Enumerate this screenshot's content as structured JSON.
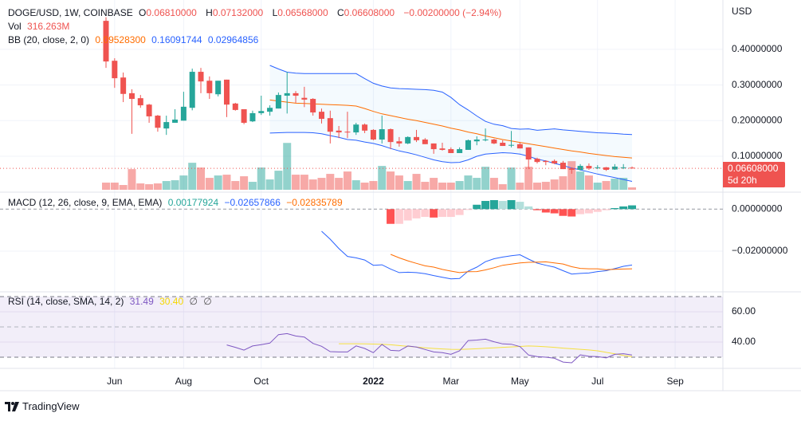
{
  "symbol_legend": {
    "title": "DOGE/USD, 1W, COINBASE",
    "o_label": "O",
    "o": "0.06810000",
    "h_label": "H",
    "h": "0.07132000",
    "l_label": "L",
    "l": "0.06568000",
    "c_label": "C",
    "c": "0.06608000",
    "change": "−0.00200000 (−2.94%)"
  },
  "volume_legend": {
    "label": "Vol",
    "value": "316.263M"
  },
  "bb_legend": {
    "label": "BB (20, close, 2, 0)",
    "basis": "0.09528300",
    "upper": "0.16091744",
    "lower": "0.02964856"
  },
  "macd_legend": {
    "label": "MACD (12, 26, close, 9, EMA, EMA)",
    "hist": "0.00177924",
    "macd": "−0.02657866",
    "signal": "−0.02835789"
  },
  "rsi_legend": {
    "label": "RSI (14, close, SMA, 14, 2)",
    "rsi": "31.49",
    "sma": "30.40",
    "extra1": "∅",
    "extra2": "∅"
  },
  "price_axis": {
    "currency": "USD",
    "ticks": [
      "0.40000000",
      "0.30000000",
      "0.20000000",
      "0.10000000"
    ],
    "last_price": "0.06608000",
    "countdown": "5d 20h"
  },
  "macd_axis": {
    "ticks": [
      "0.00000000",
      "−0.02000000"
    ]
  },
  "rsi_axis": {
    "ticks": [
      "60.00",
      "40.00"
    ]
  },
  "time_axis": {
    "ticks": [
      {
        "label": "Jun",
        "date": "2021-06-07"
      },
      {
        "label": "Aug",
        "date": "2021-08-02"
      },
      {
        "label": "Oct",
        "date": "2021-10-04"
      },
      {
        "label": "2022",
        "date": "2022-01-03"
      },
      {
        "label": "Mar",
        "date": "2022-03-07"
      },
      {
        "label": "May",
        "date": "2022-05-02"
      },
      {
        "label": "Jul",
        "date": "2022-07-04"
      },
      {
        "label": "Sep",
        "date": "2022-09-05"
      }
    ]
  },
  "footer": {
    "brand": "TradingView"
  },
  "colors": {
    "up": "#26a69a",
    "down": "#ef5350",
    "bb_basis": "#ff6d00",
    "bb_band": "#2962ff",
    "macd": "#2962ff",
    "signal": "#ff6d00",
    "rsi": "#7e57c2",
    "rsi_sma": "#f5e040"
  },
  "chart_data": {
    "type": "candlestick",
    "price_range": [
      0,
      0.5
    ],
    "columns": [
      "date",
      "open",
      "high",
      "low",
      "close",
      "volume_m"
    ],
    "candles": [
      [
        "2021-05-31",
        0.48,
        0.49,
        0.348,
        0.366,
        945
      ],
      [
        "2021-06-07",
        0.368,
        0.375,
        0.292,
        0.319,
        945
      ],
      [
        "2021-06-14",
        0.321,
        0.335,
        0.252,
        0.275,
        630
      ],
      [
        "2021-06-21",
        0.277,
        0.288,
        0.163,
        0.261,
        2730
      ],
      [
        "2021-06-28",
        0.263,
        0.272,
        0.236,
        0.243,
        840
      ],
      [
        "2021-07-05",
        0.245,
        0.247,
        0.194,
        0.212,
        735
      ],
      [
        "2021-07-12",
        0.214,
        0.216,
        0.169,
        0.18,
        840
      ],
      [
        "2021-07-19",
        0.178,
        0.214,
        0.16,
        0.196,
        1155
      ],
      [
        "2021-07-26",
        0.194,
        0.232,
        0.194,
        0.203,
        1260
      ],
      [
        "2021-08-02",
        0.2,
        0.281,
        0.2,
        0.239,
        1890
      ],
      [
        "2021-08-09",
        0.236,
        0.346,
        0.229,
        0.337,
        3570
      ],
      [
        "2021-08-16",
        0.337,
        0.348,
        0.277,
        0.31,
        2940
      ],
      [
        "2021-08-23",
        0.312,
        0.324,
        0.261,
        0.277,
        1575
      ],
      [
        "2021-08-30",
        0.274,
        0.312,
        0.268,
        0.312,
        1890
      ],
      [
        "2021-09-06",
        0.315,
        0.315,
        0.21,
        0.245,
        1995
      ],
      [
        "2021-09-13",
        0.248,
        0.25,
        0.228,
        0.23,
        1155
      ],
      [
        "2021-09-20",
        0.232,
        0.232,
        0.19,
        0.194,
        1785
      ],
      [
        "2021-09-27",
        0.198,
        0.228,
        0.196,
        0.221,
        1050
      ],
      [
        "2021-10-04",
        0.221,
        0.27,
        0.216,
        0.227,
        2940
      ],
      [
        "2021-10-11",
        0.225,
        0.243,
        0.214,
        0.236,
        1365
      ],
      [
        "2021-10-18",
        0.234,
        0.279,
        0.234,
        0.272,
        2520
      ],
      [
        "2021-10-25",
        0.27,
        0.337,
        0.22,
        0.277,
        6195
      ],
      [
        "2021-11-01",
        0.277,
        0.283,
        0.25,
        0.27,
        1995
      ],
      [
        "2021-11-08",
        0.264,
        0.295,
        0.238,
        0.259,
        1995
      ],
      [
        "2021-11-15",
        0.261,
        0.263,
        0.214,
        0.223,
        1365
      ],
      [
        "2021-11-22",
        0.225,
        0.234,
        0.192,
        0.205,
        1575
      ],
      [
        "2021-11-29",
        0.207,
        0.228,
        0.136,
        0.169,
        2100
      ],
      [
        "2021-12-06",
        0.172,
        0.185,
        0.151,
        0.167,
        1575
      ],
      [
        "2021-12-13",
        0.169,
        0.225,
        0.151,
        0.167,
        2415
      ],
      [
        "2021-12-20",
        0.167,
        0.194,
        0.16,
        0.189,
        1260
      ],
      [
        "2021-12-27",
        0.189,
        0.192,
        0.165,
        0.172,
        945
      ],
      [
        "2022-01-03",
        0.174,
        0.176,
        0.145,
        0.147,
        1155
      ],
      [
        "2022-01-10",
        0.147,
        0.214,
        0.136,
        0.176,
        3150
      ],
      [
        "2022-01-17",
        0.176,
        0.178,
        0.12,
        0.14,
        2415
      ],
      [
        "2022-01-24",
        0.142,
        0.154,
        0.127,
        0.136,
        1890
      ],
      [
        "2022-01-31",
        0.136,
        0.156,
        0.134,
        0.154,
        1155
      ],
      [
        "2022-02-07",
        0.154,
        0.174,
        0.14,
        0.145,
        2100
      ],
      [
        "2022-02-14",
        0.147,
        0.151,
        0.134,
        0.134,
        1050
      ],
      [
        "2022-02-21",
        0.136,
        0.136,
        0.107,
        0.12,
        1575
      ],
      [
        "2022-02-28",
        0.122,
        0.138,
        0.116,
        0.118,
        945
      ],
      [
        "2022-03-07",
        0.12,
        0.125,
        0.109,
        0.109,
        945
      ],
      [
        "2022-03-14",
        0.109,
        0.125,
        0.109,
        0.12,
        1155
      ],
      [
        "2022-03-21",
        0.118,
        0.147,
        0.118,
        0.145,
        1890
      ],
      [
        "2022-03-28",
        0.142,
        0.156,
        0.131,
        0.147,
        1575
      ],
      [
        "2022-04-04",
        0.145,
        0.178,
        0.142,
        0.147,
        3045
      ],
      [
        "2022-04-11",
        0.147,
        0.149,
        0.134,
        0.136,
        1575
      ],
      [
        "2022-04-18",
        0.138,
        0.145,
        0.129,
        0.129,
        735
      ],
      [
        "2022-04-25",
        0.13,
        0.171,
        0.125,
        0.132,
        2940
      ],
      [
        "2022-05-02",
        0.134,
        0.138,
        0.122,
        0.122,
        945
      ],
      [
        "2022-05-09",
        0.125,
        0.125,
        0.064,
        0.091,
        3045
      ],
      [
        "2022-05-16",
        0.093,
        0.096,
        0.08,
        0.084,
        945
      ],
      [
        "2022-05-23",
        0.087,
        0.089,
        0.075,
        0.084,
        1050
      ],
      [
        "2022-05-30",
        0.087,
        0.091,
        0.078,
        0.08,
        1365
      ],
      [
        "2022-06-06",
        0.082,
        0.087,
        0.064,
        0.064,
        1785
      ],
      [
        "2022-06-13",
        0.066,
        0.069,
        0.051,
        0.062,
        3780
      ],
      [
        "2022-06-20",
        0.062,
        0.078,
        0.06,
        0.073,
        2415
      ],
      [
        "2022-06-27",
        0.073,
        0.08,
        0.062,
        0.066,
        1890
      ],
      [
        "2022-07-04",
        0.068,
        0.075,
        0.064,
        0.069,
        945
      ],
      [
        "2022-07-11",
        0.069,
        0.07,
        0.059,
        0.062,
        1155
      ],
      [
        "2022-07-18",
        0.063,
        0.078,
        0.062,
        0.071,
        1470
      ],
      [
        "2022-07-25",
        0.068,
        0.078,
        0.064,
        0.069,
        1575
      ],
      [
        "2022-08-01",
        0.0681,
        0.07132,
        0.06568,
        0.06608,
        316.263
      ]
    ],
    "bb_start_index": 19,
    "bb_upper": [
      0.355,
      0.345,
      0.336,
      0.333,
      0.332,
      0.332,
      0.332,
      0.332,
      0.332,
      0.332,
      0.332,
      0.318,
      0.305,
      0.297,
      0.292,
      0.29,
      0.289,
      0.288,
      0.287,
      0.285,
      0.28,
      0.265,
      0.245,
      0.23,
      0.213,
      0.198,
      0.19,
      0.186,
      0.178,
      0.176,
      0.177,
      0.173,
      0.175,
      0.177,
      0.174,
      0.172,
      0.17,
      0.168,
      0.166,
      0.165,
      0.164,
      0.162,
      0.1609
    ],
    "bb_basis": [
      0.258,
      0.255,
      0.252,
      0.249,
      0.248,
      0.247,
      0.246,
      0.245,
      0.244,
      0.243,
      0.241,
      0.234,
      0.226,
      0.219,
      0.214,
      0.209,
      0.204,
      0.2,
      0.195,
      0.19,
      0.185,
      0.179,
      0.174,
      0.168,
      0.163,
      0.157,
      0.152,
      0.147,
      0.143,
      0.139,
      0.135,
      0.131,
      0.127,
      0.123,
      0.119,
      0.115,
      0.112,
      0.108,
      0.105,
      0.102,
      0.099,
      0.097,
      0.0953
    ],
    "bb_lower": [
      0.165,
      0.166,
      0.167,
      0.167,
      0.167,
      0.166,
      0.163,
      0.158,
      0.153,
      0.147,
      0.145,
      0.14,
      0.136,
      0.13,
      0.122,
      0.115,
      0.11,
      0.104,
      0.097,
      0.09,
      0.085,
      0.082,
      0.083,
      0.09,
      0.1,
      0.106,
      0.108,
      0.11,
      0.109,
      0.106,
      0.1,
      0.092,
      0.087,
      0.08,
      0.074,
      0.067,
      0.062,
      0.056,
      0.05,
      0.045,
      0.04,
      0.035,
      0.0296
    ],
    "macd_start_index": 25,
    "macd": [
      -0.0105,
      -0.0143,
      -0.0187,
      -0.0225,
      -0.0232,
      -0.0242,
      -0.0267,
      -0.0265,
      -0.0285,
      -0.0302,
      -0.03,
      -0.0302,
      -0.0307,
      -0.0316,
      -0.0324,
      -0.0332,
      -0.033,
      -0.0295,
      -0.0276,
      -0.025,
      -0.0236,
      -0.0228,
      -0.0222,
      -0.0217,
      -0.0238,
      -0.0257,
      -0.0267,
      -0.0276,
      -0.0293,
      -0.0309,
      -0.0306,
      -0.0304,
      -0.0297,
      -0.0293,
      -0.0283,
      -0.0272,
      -0.0266
    ],
    "signal_start_index": 33,
    "signal": [
      -0.0215,
      -0.0232,
      -0.0246,
      -0.0258,
      -0.027,
      -0.0276,
      -0.0287,
      -0.0295,
      -0.0302,
      -0.0298,
      -0.0297,
      -0.0289,
      -0.0279,
      -0.0267,
      -0.0262,
      -0.0256,
      -0.0253,
      -0.0252,
      -0.0251,
      -0.0256,
      -0.0261,
      -0.0274,
      -0.0282,
      -0.0284,
      -0.0284,
      -0.0288,
      -0.0286,
      -0.0285,
      -0.0284
    ],
    "hist_start_index": 33,
    "histogram": [
      -0.007,
      -0.007,
      -0.0054,
      -0.0044,
      -0.0037,
      -0.004,
      -0.0037,
      -0.0037,
      -0.0028,
      -0.0003,
      0.0021,
      0.0039,
      0.0043,
      0.0039,
      0.0043,
      0.0035,
      0.0013,
      -0.0005,
      -0.0016,
      -0.002,
      -0.0032,
      -0.0035,
      -0.0024,
      -0.002,
      -0.0013,
      -0.0005,
      0.0005,
      0.0013,
      0.0018
    ],
    "macd_range": [
      -0.036,
      0.0075
    ],
    "rsi_start_index": 14,
    "rsi": [
      38.1,
      36.5,
      34.7,
      37.4,
      38.3,
      39.3,
      44.9,
      45.6,
      44.0,
      43.3,
      39.1,
      37.2,
      33.7,
      33.5,
      33.5,
      37.5,
      35.8,
      33.0,
      38.4,
      34.5,
      34.2,
      37.4,
      36.7,
      35.1,
      33.5,
      33.0,
      31.9,
      34.2,
      41.0,
      41.3,
      41.9,
      40.2,
      38.8,
      38.6,
      37.0,
      31.4,
      30.4,
      30.0,
      29.3,
      26.8,
      26.3,
      31.6,
      30.6,
      30.4,
      29.5,
      31.9,
      32.3,
      31.49
    ],
    "rsi_sma_start_index": 27,
    "rsi_sma": [
      38.9,
      38.9,
      38.9,
      38.8,
      38.7,
      38.6,
      38.2,
      37.7,
      37.2,
      36.7,
      36.2,
      35.8,
      35.5,
      35.2,
      35.1,
      35.3,
      35.6,
      35.9,
      36.2,
      36.5,
      36.8,
      37.1,
      37.4,
      37.2,
      36.9,
      36.5,
      36.0,
      35.6,
      35.2,
      34.8,
      34.2,
      33.2,
      32.2,
      31.2,
      30.4
    ],
    "rsi_levels": [
      70,
      50,
      30
    ]
  }
}
